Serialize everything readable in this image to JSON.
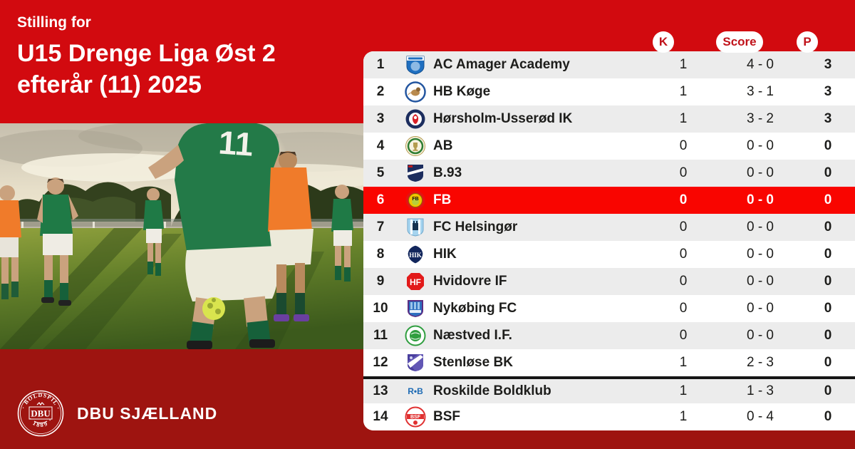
{
  "header": {
    "eyebrow": "Stilling for",
    "title_line1": "U15 Drenge Liga Øst 2",
    "title_line2": "efterår (11) 2025"
  },
  "colors": {
    "brand_red": "#d20a0f",
    "footer_red": "#9e1410",
    "highlight_red": "#f90500",
    "row_gray": "#ececec",
    "badge_text_red": "#c0121a",
    "text_dark": "#1d1d1b"
  },
  "table": {
    "columns": {
      "k": "K",
      "score": "Score",
      "p": "P"
    },
    "separator_before_pos": "13",
    "rows": [
      {
        "pos": "1",
        "club": "AC Amager Academy",
        "logo": "ac-amager",
        "k": "1",
        "score": "4 - 0",
        "p": "3",
        "highlight": false
      },
      {
        "pos": "2",
        "club": "HB Køge",
        "logo": "hb-koge",
        "k": "1",
        "score": "3 - 1",
        "p": "3",
        "highlight": false
      },
      {
        "pos": "3",
        "club": "Hørsholm-Usserød IK",
        "logo": "horsholm",
        "k": "1",
        "score": "3 - 2",
        "p": "3",
        "highlight": false
      },
      {
        "pos": "4",
        "club": "AB",
        "logo": "ab",
        "k": "0",
        "score": "0 - 0",
        "p": "0",
        "highlight": false
      },
      {
        "pos": "5",
        "club": "B.93",
        "logo": "b93",
        "k": "0",
        "score": "0 - 0",
        "p": "0",
        "highlight": false
      },
      {
        "pos": "6",
        "club": "FB",
        "logo": "fb",
        "k": "0",
        "score": "0 - 0",
        "p": "0",
        "highlight": true
      },
      {
        "pos": "7",
        "club": "FC Helsingør",
        "logo": "helsingor",
        "k": "0",
        "score": "0 - 0",
        "p": "0",
        "highlight": false
      },
      {
        "pos": "8",
        "club": "HIK",
        "logo": "hik",
        "k": "0",
        "score": "0 - 0",
        "p": "0",
        "highlight": false
      },
      {
        "pos": "9",
        "club": "Hvidovre IF",
        "logo": "hvidovre",
        "k": "0",
        "score": "0 - 0",
        "p": "0",
        "highlight": false
      },
      {
        "pos": "10",
        "club": "Nykøbing FC",
        "logo": "nykobing",
        "k": "0",
        "score": "0 - 0",
        "p": "0",
        "highlight": false
      },
      {
        "pos": "11",
        "club": "Næstved I.F.",
        "logo": "naestved",
        "k": "0",
        "score": "0 - 0",
        "p": "0",
        "highlight": false
      },
      {
        "pos": "12",
        "club": "Stenløse BK",
        "logo": "stenlose",
        "k": "1",
        "score": "2 - 3",
        "p": "0",
        "highlight": false
      },
      {
        "pos": "13",
        "club": "Roskilde Boldklub",
        "logo": "roskilde",
        "k": "1",
        "score": "1 - 3",
        "p": "0",
        "highlight": false
      },
      {
        "pos": "14",
        "club": "BSF",
        "logo": "bsf",
        "k": "1",
        "score": "0 - 4",
        "p": "0",
        "highlight": false
      }
    ]
  },
  "footer": {
    "org": "DBU SJÆLLAND",
    "logo_ring_text": "DANSK · BOLDSPIL · UNION",
    "logo_year": "· 1889 ·",
    "logo_center": "DBU"
  }
}
